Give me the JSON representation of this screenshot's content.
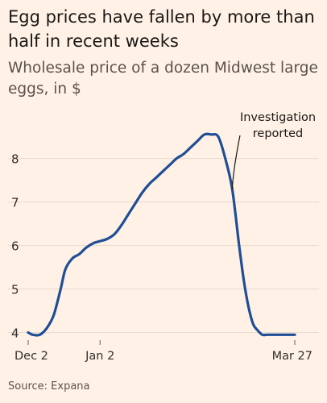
{
  "title": "Egg prices have fallen by more than half in recent weeks",
  "subtitle": "Wholesale price of a dozen Midwest large eggs, in $",
  "source": "Source: Expana",
  "colors": {
    "background": "#fff1e5",
    "line": "#1f4e96",
    "grid": "#e6d9ce"
  },
  "chart_data": {
    "type": "line",
    "title": "Egg prices have fallen by more than half in recent weeks",
    "ylabel": "Wholesale price of a dozen Midwest large eggs, in $",
    "xlabel": "",
    "ylim": [
      3.9,
      8.9
    ],
    "yticks": [
      4,
      5,
      6,
      7,
      8
    ],
    "xticks": [
      {
        "label": "Dec 2",
        "day": 0
      },
      {
        "label": "Jan 2",
        "day": 31
      },
      {
        "label": "Mar 27",
        "day": 115
      }
    ],
    "grid": true,
    "series": [
      {
        "name": "",
        "x": [
          0,
          2,
          5,
          8,
          11,
          14,
          16,
          19,
          22,
          25,
          28,
          31,
          34,
          37,
          40,
          43,
          46,
          49,
          52,
          55,
          58,
          61,
          64,
          67,
          70,
          73,
          76,
          79,
          82,
          85,
          88,
          91,
          93,
          95,
          97,
          99,
          101,
          103,
          105,
          107,
          109,
          111,
          113,
          115
        ],
        "y": [
          4.0,
          3.95,
          3.95,
          4.1,
          4.4,
          5.0,
          5.45,
          5.7,
          5.8,
          5.95,
          6.05,
          6.1,
          6.15,
          6.25,
          6.45,
          6.7,
          6.95,
          7.2,
          7.4,
          7.55,
          7.7,
          7.85,
          8.0,
          8.1,
          8.25,
          8.4,
          8.55,
          8.55,
          8.5,
          8.0,
          7.3,
          6.0,
          5.2,
          4.6,
          4.2,
          4.05,
          3.95,
          3.95,
          3.95,
          3.95,
          3.95,
          3.95,
          3.95,
          3.95
        ]
      }
    ],
    "annotations": [
      {
        "text": [
          "Investigation",
          "reported"
        ],
        "x": 88,
        "y": 7.3
      }
    ]
  }
}
